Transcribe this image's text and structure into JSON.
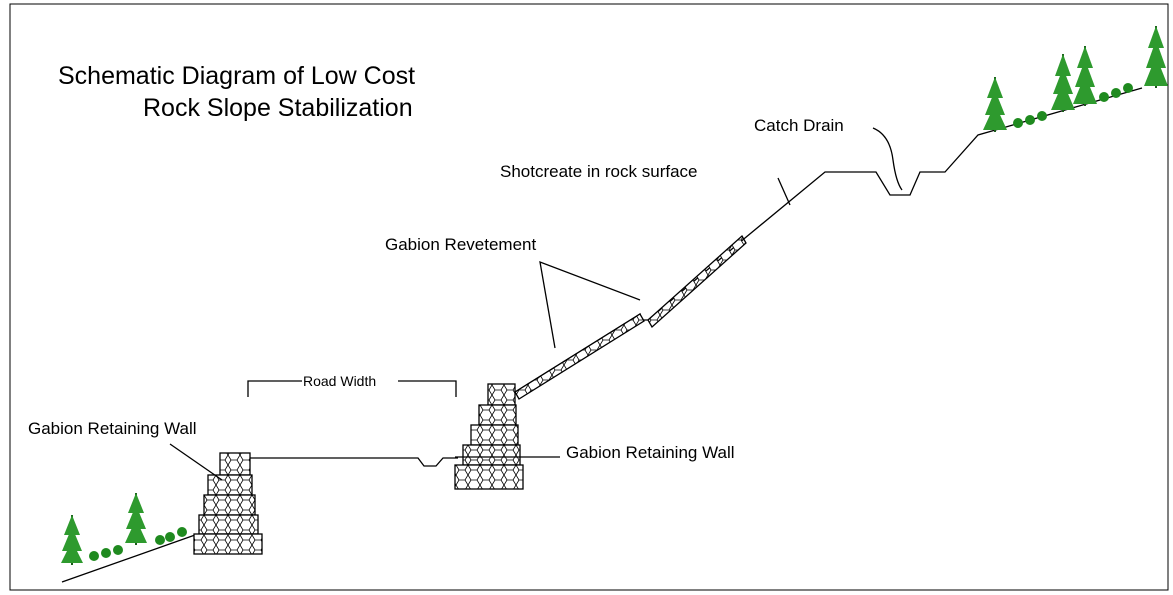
{
  "title": [
    "Schematic Diagram of Low Cost",
    "Rock Slope Stabilization"
  ],
  "labels": {
    "catch_drain": "Catch Drain",
    "shotcrete": "Shotcreate in rock surface",
    "revetement": "Gabion Revetement",
    "road_width": "Road Width",
    "wall_left": "Gabion Retaining Wall",
    "wall_right": "Gabion Retaining Wall"
  }
}
